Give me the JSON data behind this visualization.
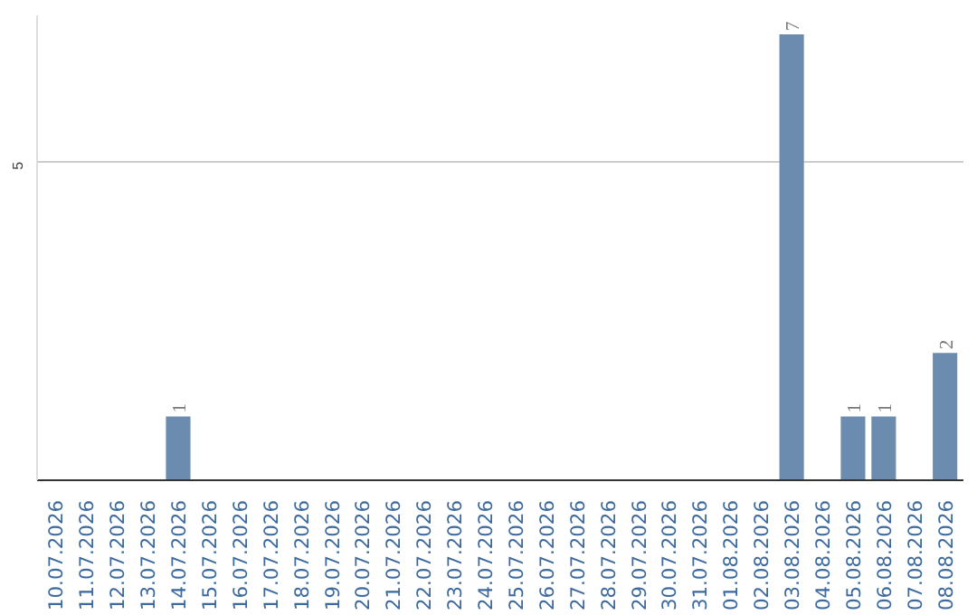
{
  "chart_data": {
    "type": "bar",
    "categories": [
      "10.07.2026",
      "11.07.2026",
      "12.07.2026",
      "13.07.2026",
      "14.07.2026",
      "15.07.2026",
      "16.07.2026",
      "17.07.2026",
      "18.07.2026",
      "19.07.2026",
      "20.07.2026",
      "21.07.2026",
      "22.07.2026",
      "23.07.2026",
      "24.07.2026",
      "25.07.2026",
      "26.07.2026",
      "27.07.2026",
      "28.07.2026",
      "29.07.2026",
      "30.07.2026",
      "31.07.2026",
      "01.08.2026",
      "02.08.2026",
      "03.08.2026",
      "04.08.2026",
      "05.08.2026",
      "06.08.2026",
      "07.08.2026",
      "08.08.2026"
    ],
    "values": [
      null,
      null,
      null,
      null,
      1,
      null,
      null,
      null,
      null,
      null,
      null,
      null,
      null,
      null,
      null,
      null,
      null,
      null,
      null,
      null,
      null,
      null,
      null,
      null,
      7,
      null,
      1,
      1,
      null,
      2
    ],
    "color": "#6b8caf",
    "ylim": [
      0,
      7.3
    ],
    "yticks": [
      5
    ],
    "grid": "y",
    "data_labels": true
  }
}
